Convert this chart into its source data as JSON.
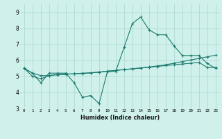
{
  "xlabel": "Humidex (Indice chaleur)",
  "x": [
    0,
    1,
    2,
    3,
    4,
    5,
    6,
    7,
    8,
    9,
    10,
    11,
    12,
    13,
    14,
    15,
    16,
    17,
    18,
    19,
    20,
    21,
    22,
    23
  ],
  "line1": [
    5.5,
    5.2,
    4.6,
    5.2,
    5.2,
    5.2,
    4.6,
    3.7,
    3.8,
    3.3,
    5.3,
    5.3,
    6.8,
    8.3,
    8.7,
    7.9,
    7.6,
    7.6,
    6.9,
    6.3,
    6.3,
    6.3,
    5.8,
    5.5
  ],
  "line2": [
    5.5,
    5.0,
    4.85,
    5.05,
    5.1,
    5.15,
    5.15,
    5.2,
    5.22,
    5.25,
    5.32,
    5.37,
    5.42,
    5.47,
    5.52,
    5.58,
    5.65,
    5.72,
    5.82,
    5.92,
    6.02,
    6.12,
    6.22,
    6.32
  ],
  "line3": [
    5.5,
    5.2,
    5.05,
    5.05,
    5.12,
    5.12,
    5.17,
    5.17,
    5.22,
    5.27,
    5.32,
    5.37,
    5.42,
    5.47,
    5.52,
    5.57,
    5.62,
    5.67,
    5.72,
    5.77,
    5.82,
    5.87,
    5.55,
    5.55
  ],
  "ylim": [
    3.0,
    9.5
  ],
  "yticks": [
    3,
    4,
    5,
    6,
    7,
    8,
    9
  ],
  "xticks": [
    0,
    1,
    2,
    3,
    4,
    5,
    6,
    7,
    8,
    9,
    10,
    11,
    12,
    13,
    14,
    15,
    16,
    17,
    18,
    19,
    20,
    21,
    22,
    23
  ],
  "line_color": "#1a7a6e",
  "bg_color": "#cff0eb",
  "grid_color": "#a8d5ce"
}
